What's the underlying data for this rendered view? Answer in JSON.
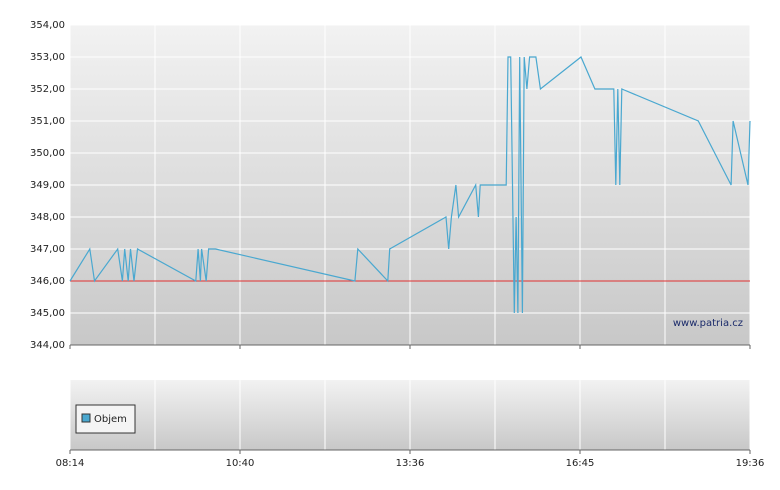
{
  "chart_data": {
    "type": "line",
    "x": [
      "08:14",
      "08:31",
      "08:35",
      "08:55",
      "08:59",
      "09:01",
      "09:04",
      "09:06",
      "09:09",
      "09:12",
      "10:02",
      "10:04",
      "10:06",
      "10:07",
      "10:11",
      "10:13",
      "10:19",
      "12:39",
      "12:42",
      "13:13",
      "13:15",
      "14:16",
      "14:19",
      "14:22",
      "14:27",
      "14:30",
      "14:49",
      "14:52",
      "14:54",
      "15:23",
      "15:25",
      "15:28",
      "15:32",
      "15:34",
      "15:36",
      "15:38",
      "15:41",
      "15:43",
      "15:46",
      "15:49",
      "15:56",
      "16:01",
      "16:46",
      "17:00",
      "17:19",
      "17:21",
      "17:23",
      "17:25",
      "17:27",
      "18:44",
      "19:17",
      "19:19",
      "19:34",
      "19:36"
    ],
    "values": [
      346,
      347,
      346,
      347,
      346,
      347,
      346,
      347,
      346,
      347,
      346,
      347,
      346,
      347,
      346,
      347,
      347,
      346,
      347,
      346,
      347,
      348,
      347,
      348,
      349,
      348,
      349,
      348,
      349,
      349,
      353,
      353,
      345,
      348,
      345,
      353,
      345,
      353,
      352,
      353,
      353,
      352,
      353,
      352,
      352,
      349,
      352,
      349,
      352,
      351,
      349,
      351,
      349,
      351
    ],
    "color": "#4aa8d0",
    "ylim": [
      344,
      354
    ],
    "yticks": [
      {
        "value": 344,
        "label": "344,00"
      },
      {
        "value": 345,
        "label": "345,00"
      },
      {
        "value": 346,
        "label": "346,00"
      },
      {
        "value": 347,
        "label": "347,00"
      },
      {
        "value": 348,
        "label": "348,00"
      },
      {
        "value": 349,
        "label": "349,00"
      },
      {
        "value": 350,
        "label": "350,00"
      },
      {
        "value": 351,
        "label": "351,00"
      },
      {
        "value": 352,
        "label": "352,00"
      },
      {
        "value": 353,
        "label": "353,00"
      },
      {
        "value": 354,
        "label": "354,00"
      }
    ],
    "xticks": [
      "08:14",
      "10:40",
      "13:36",
      "16:45",
      "19:36"
    ],
    "reference_line": 346,
    "reference_color": "#e03030",
    "grid": true,
    "watermark": "www.patria.cz",
    "volume_legend": {
      "name": "Objem",
      "color": "#4aa8d0"
    }
  }
}
